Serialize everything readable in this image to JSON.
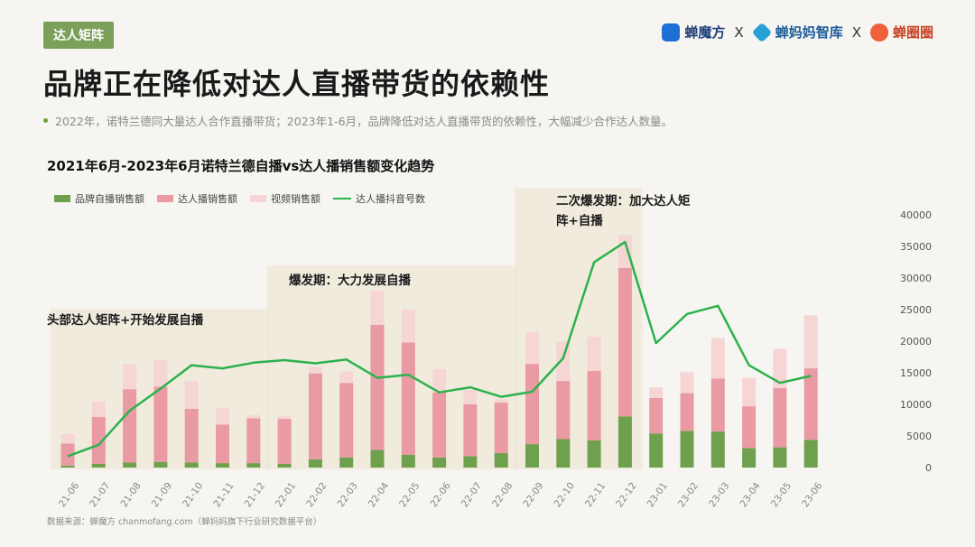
{
  "header": {
    "tag": "达人矩阵",
    "title": "品牌正在降低对达人直播带货的依赖性",
    "brands": [
      "蝉魔方",
      "蝉妈妈智库",
      "蝉圈圈"
    ],
    "separator": "X",
    "subtitle": "2022年，诺特兰德同大量达人合作直播带货；2023年1-6月，品牌降低对达人直播带货的依赖性，大幅减少合作达人数量。"
  },
  "colors": {
    "brand": "#6fa04d",
    "talent": "#e99aa3",
    "video": "#f6d6d5",
    "line": "#2bb24c",
    "phase_bg": "#ede7d6",
    "tag_bg": "#7aa05a"
  },
  "footer": {
    "source": "数据来源：蝉魔方 chanmofang.com（蝉妈妈旗下行业研究数据平台）"
  },
  "chart_data": {
    "type": "bar",
    "stacked": true,
    "title": "2021年6月-2023年6月诺特兰德自播vs达人播销售额变化趋势",
    "xlabel": "",
    "ylabel": "",
    "categories": [
      "21-06",
      "21-07",
      "21-08",
      "21-09",
      "21-10",
      "21-11",
      "21-12",
      "22-01",
      "22-02",
      "22-03",
      "22-04",
      "22-05",
      "22-06",
      "22-07",
      "22-08",
      "22-09",
      "22-10",
      "22-11",
      "22-12",
      "23-01",
      "23-02",
      "23-03",
      "23-04",
      "23-05",
      "23-06"
    ],
    "ylim": [
      0,
      40000
    ],
    "yticks": [
      0,
      5000,
      10000,
      15000,
      20000,
      25000,
      30000,
      35000,
      40000
    ],
    "y_axis_side": "right",
    "legend_position": "top-left",
    "grid": false,
    "series": [
      {
        "name": "品牌自播销售额",
        "kind": "bar",
        "values": [
          300,
          600,
          800,
          900,
          800,
          700,
          700,
          600,
          1300,
          1600,
          2800,
          2000,
          1600,
          1800,
          2300,
          3700,
          4500,
          4300,
          8100,
          5400,
          5800,
          5700,
          3100,
          3200,
          4400
        ]
      },
      {
        "name": "达人播销售额",
        "kind": "bar",
        "values": [
          3500,
          7400,
          11600,
          11900,
          8500,
          6100,
          7100,
          7100,
          13600,
          11800,
          19800,
          17800,
          10300,
          8200,
          8000,
          12700,
          9200,
          11000,
          23500,
          5600,
          6000,
          8400,
          6600,
          9400,
          11300
        ]
      },
      {
        "name": "视频销售额",
        "kind": "bar",
        "values": [
          1500,
          2500,
          4000,
          4200,
          4400,
          2600,
          500,
          500,
          1100,
          1800,
          5400,
          5200,
          3700,
          2300,
          500,
          5000,
          6300,
          5400,
          5200,
          1700,
          3300,
          6400,
          4500,
          6200,
          8400
        ]
      },
      {
        "name": "达人播抖音号数",
        "kind": "line",
        "values": [
          1800,
          3600,
          9000,
          12500,
          16200,
          15700,
          16600,
          17000,
          16500,
          17100,
          14200,
          14700,
          11900,
          12700,
          11200,
          12000,
          17300,
          32500,
          35700,
          19700,
          24300,
          25600,
          16200,
          13400,
          14500
        ]
      }
    ],
    "phases": [
      {
        "label": "头部达人矩阵+开始发展自播",
        "start": "21-06",
        "end": "21-12"
      },
      {
        "label": "爆发期：大力发展自播",
        "start": "22-01",
        "end": "22-08"
      },
      {
        "label": "二次爆发期：加大达人矩阵+自播",
        "start": "22-09",
        "end": "22-12"
      }
    ]
  }
}
